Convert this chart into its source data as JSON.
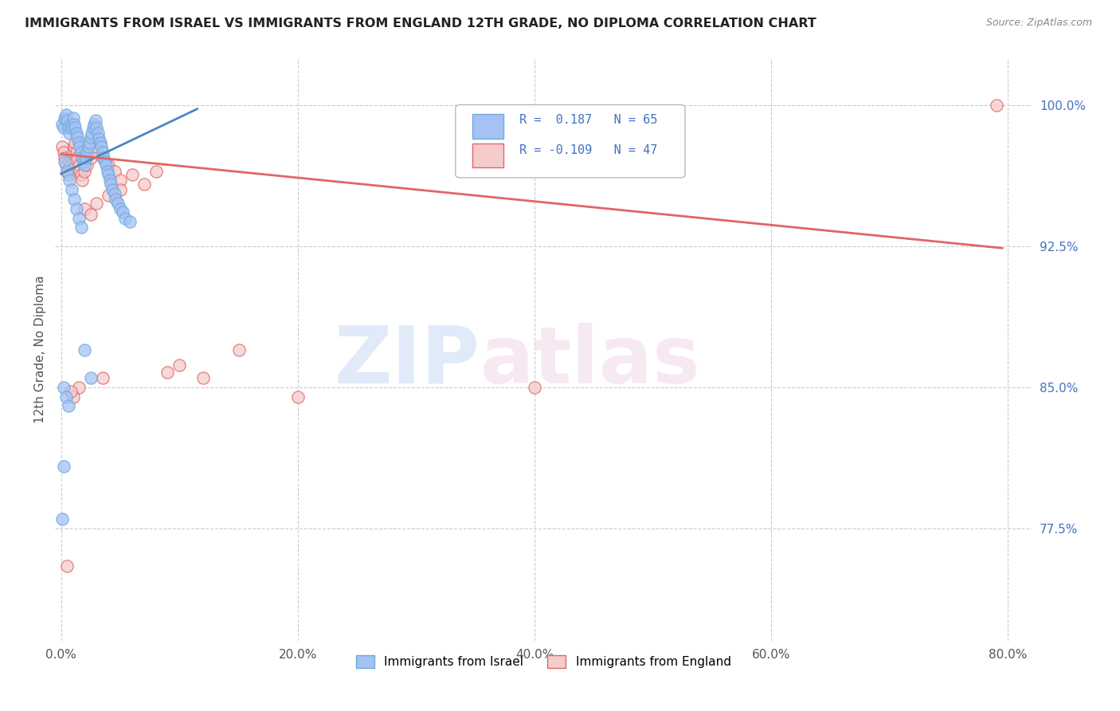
{
  "title": "IMMIGRANTS FROM ISRAEL VS IMMIGRANTS FROM ENGLAND 12TH GRADE, NO DIPLOMA CORRELATION CHART",
  "source": "Source: ZipAtlas.com",
  "ylabel": "12th Grade, No Diploma",
  "x_ticks": [
    "0.0%",
    "20.0%",
    "40.0%",
    "60.0%",
    "80.0%"
  ],
  "x_tick_vals": [
    0.0,
    0.2,
    0.4,
    0.6,
    0.8
  ],
  "y_ticks_right": [
    "100.0%",
    "92.5%",
    "85.0%",
    "77.5%"
  ],
  "y_tick_vals_right": [
    1.0,
    0.925,
    0.85,
    0.775
  ],
  "xlim": [
    -0.005,
    0.82
  ],
  "ylim": [
    0.715,
    1.025
  ],
  "color_israel": "#a4c2f4",
  "color_israel_edge": "#6fa8dc",
  "color_england": "#f4cccc",
  "color_england_edge": "#e06666",
  "color_israel_line": "#4a86c8",
  "color_england_line": "#e06666",
  "color_blue_text": "#4472c4",
  "background_color": "#ffffff",
  "grid_color": "#cccccc",
  "israel_scatter_x": [
    0.001,
    0.002,
    0.003,
    0.004,
    0.005,
    0.006,
    0.007,
    0.008,
    0.009,
    0.01,
    0.011,
    0.012,
    0.013,
    0.014,
    0.015,
    0.016,
    0.017,
    0.018,
    0.019,
    0.02,
    0.021,
    0.022,
    0.023,
    0.024,
    0.025,
    0.026,
    0.027,
    0.028,
    0.029,
    0.03,
    0.031,
    0.032,
    0.033,
    0.034,
    0.035,
    0.036,
    0.037,
    0.038,
    0.039,
    0.04,
    0.041,
    0.042,
    0.043,
    0.045,
    0.046,
    0.048,
    0.05,
    0.052,
    0.054,
    0.058,
    0.003,
    0.005,
    0.007,
    0.009,
    0.011,
    0.013,
    0.015,
    0.017,
    0.02,
    0.025,
    0.002,
    0.004,
    0.006,
    0.002,
    0.001
  ],
  "israel_scatter_y": [
    0.99,
    0.988,
    0.993,
    0.995,
    0.992,
    0.988,
    0.985,
    0.99,
    0.988,
    0.993,
    0.99,
    0.988,
    0.985,
    0.983,
    0.98,
    0.978,
    0.975,
    0.972,
    0.97,
    0.968,
    0.972,
    0.975,
    0.978,
    0.98,
    0.983,
    0.985,
    0.988,
    0.99,
    0.992,
    0.988,
    0.985,
    0.982,
    0.98,
    0.978,
    0.975,
    0.972,
    0.97,
    0.968,
    0.965,
    0.963,
    0.96,
    0.958,
    0.955,
    0.953,
    0.95,
    0.948,
    0.945,
    0.943,
    0.94,
    0.938,
    0.97,
    0.965,
    0.96,
    0.955,
    0.95,
    0.945,
    0.94,
    0.935,
    0.87,
    0.855,
    0.85,
    0.845,
    0.84,
    0.808,
    0.78
  ],
  "england_scatter_x": [
    0.001,
    0.002,
    0.003,
    0.004,
    0.005,
    0.006,
    0.007,
    0.008,
    0.009,
    0.01,
    0.011,
    0.012,
    0.013,
    0.014,
    0.015,
    0.016,
    0.017,
    0.018,
    0.02,
    0.022,
    0.025,
    0.028,
    0.03,
    0.035,
    0.04,
    0.045,
    0.05,
    0.06,
    0.07,
    0.08,
    0.05,
    0.04,
    0.03,
    0.02,
    0.025,
    0.15,
    0.2,
    0.4,
    0.12,
    0.09,
    0.1,
    0.035,
    0.015,
    0.01,
    0.008,
    0.005,
    0.79
  ],
  "england_scatter_y": [
    0.978,
    0.975,
    0.972,
    0.968,
    0.965,
    0.963,
    0.97,
    0.968,
    0.972,
    0.975,
    0.978,
    0.98,
    0.975,
    0.972,
    0.968,
    0.965,
    0.963,
    0.96,
    0.965,
    0.968,
    0.972,
    0.975,
    0.978,
    0.972,
    0.968,
    0.965,
    0.96,
    0.963,
    0.958,
    0.965,
    0.955,
    0.952,
    0.948,
    0.945,
    0.942,
    0.87,
    0.845,
    0.85,
    0.855,
    0.858,
    0.862,
    0.855,
    0.85,
    0.845,
    0.848,
    0.755,
    1.0
  ],
  "israel_trend_x": [
    0.0,
    0.115
  ],
  "israel_trend_y": [
    0.9635,
    0.998
  ],
  "england_trend_x": [
    0.0,
    0.795
  ],
  "england_trend_y": [
    0.974,
    0.924
  ]
}
